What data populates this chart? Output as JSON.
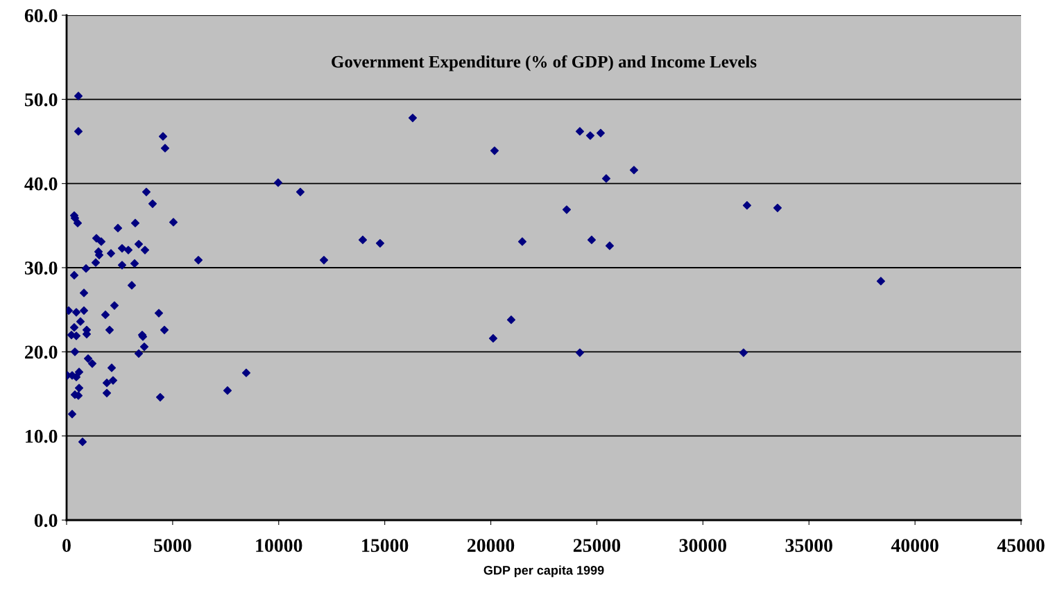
{
  "chart_data": {
    "type": "scatter",
    "title": "Government Expenditure (% of GDP) and Income Levels",
    "xlabel": "GDP per capita 1999",
    "x": [
      556,
      556,
      4545,
      4643,
      360,
      392,
      523,
      1406,
      1635,
      1504,
      1537,
      1373,
      916,
      360,
      818,
      98,
      458,
      818,
      654,
      360,
      948,
      948,
      229,
      458,
      392,
      1014,
      1210,
      33,
      262,
      458,
      589,
      589,
      392,
      556,
      262,
      752,
      2420,
      3237,
      3760,
      4055,
      5036,
      2616,
      2910,
      3401,
      3695,
      2093,
      2616,
      3205,
      3074,
      2256,
      1831,
      4349,
      2027,
      4611,
      3564,
      3597,
      3662,
      3401,
      2126,
      2191,
      1897,
      1897,
      4415,
      6213,
      9974,
      11020,
      7586,
      8469,
      12132,
      13963,
      14780,
      16317,
      20176,
      20111,
      20961,
      21484,
      23577,
      24198,
      24689,
      25179,
      25441,
      24754,
      25604,
      24198,
      26749,
      32079,
      33518,
      31915,
      38390
    ],
    "series": [
      {
        "color": "#000080",
        "values": [
          50.4,
          46.2,
          45.6,
          44.2,
          36.2,
          35.9,
          35.3,
          33.5,
          33.1,
          31.9,
          31.5,
          30.6,
          29.9,
          29.1,
          27.0,
          24.9,
          24.7,
          24.9,
          23.6,
          22.9,
          22.6,
          22.1,
          22.0,
          21.9,
          20.0,
          19.2,
          18.6,
          17.2,
          17.2,
          17.0,
          17.6,
          15.7,
          14.9,
          14.8,
          12.6,
          9.3,
          34.7,
          35.3,
          39.0,
          37.6,
          35.4,
          32.3,
          32.1,
          32.8,
          32.1,
          31.7,
          30.3,
          30.5,
          27.9,
          25.5,
          24.4,
          24.6,
          22.6,
          22.6,
          22.0,
          21.8,
          20.6,
          19.8,
          18.1,
          16.6,
          16.3,
          15.1,
          14.6,
          30.9,
          40.1,
          39.0,
          15.4,
          17.5,
          30.9,
          33.3,
          32.9,
          47.8,
          43.9,
          21.6,
          23.8,
          33.1,
          36.9,
          46.2,
          45.7,
          46.0,
          40.6,
          33.3,
          32.6,
          19.9,
          41.6,
          37.4,
          37.1,
          19.9,
          28.4
        ]
      }
    ],
    "xlim": [
      0,
      45000
    ],
    "xticks": [
      0,
      5000,
      10000,
      15000,
      20000,
      25000,
      30000,
      35000,
      40000,
      45000
    ],
    "ylim": [
      0,
      60
    ],
    "yticks": [
      {
        "value": 0,
        "label": "0.0"
      },
      {
        "value": 10,
        "label": "10.0"
      },
      {
        "value": 20,
        "label": "20.0"
      },
      {
        "value": 30,
        "label": "30.0"
      },
      {
        "value": 40,
        "label": "40.0"
      },
      {
        "value": 50,
        "label": "50.0"
      },
      {
        "value": 60,
        "label": "60.0"
      }
    ],
    "grid": "y",
    "marker": "diamond"
  }
}
